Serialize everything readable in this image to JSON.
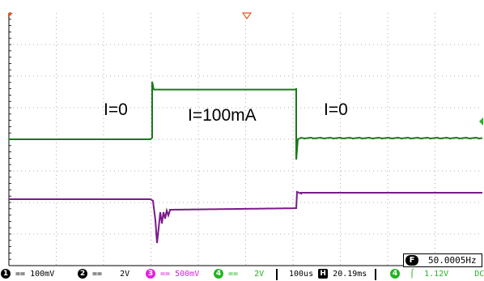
{
  "annotations": {
    "left": "I=0",
    "middle": "I=100mA",
    "right": "I=0"
  },
  "frequency": {
    "icon": "F",
    "value": "50.0005Hz"
  },
  "channels": [
    {
      "number": "1",
      "coupling": "==",
      "scale": "100mV",
      "color": "#000000"
    },
    {
      "number": "2",
      "coupling": "==",
      "scale": "2V",
      "color": "#000000"
    },
    {
      "number": "3",
      "coupling": "==",
      "scale": "500mV",
      "color": "#e020e0"
    },
    {
      "number": "4",
      "coupling": "==",
      "scale": "2V",
      "color": "#22b422"
    }
  ],
  "timebase": {
    "time_per_div": "100us",
    "h_icon": "H",
    "position": "20.19ms"
  },
  "trigger": {
    "source": "4",
    "slope": "⌠",
    "level": "1.12V",
    "coupling": "DC",
    "color": "#22b422"
  },
  "colors": {
    "grid": "#999999",
    "current_trace": "#1a7a1a",
    "voltage_trace": "#7a1a8a",
    "marker": "#e05a20"
  }
}
